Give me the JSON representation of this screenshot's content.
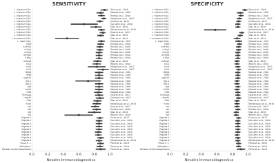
{
  "chart_data": [
    {
      "type": "forest",
      "title": "SENSITIVITY",
      "xlabel": "Novales Immunodiagnostica",
      "categories": [
        "L. infantum CSA.",
        "L. infantum CSA.",
        "L. infantum CSA.",
        "L. infantum CSA.",
        "L. infantum CSA.",
        "L. infantum CSA.",
        "L. infantum CSA.",
        "L. infantum CSA.",
        "L. infantum CSA.",
        "L. infantum CSA.",
        "L. braziliensis CSA.",
        "L. major CSA.",
        "rHSP",
        "rLiHYD1",
        "rLiHy1",
        "rLiHy3",
        "rLiHyp4",
        "rLiHys",
        "rLiHysE",
        "rLiv1",
        "rLiv4",
        "rLiv7",
        "rKQt8",
        "rGBP",
        "rpgA13",
        "rJL5.2",
        "rJL8.2",
        "rJL9",
        "rLACK",
        "rP20",
        "rEnolase",
        "rHsp83",
        "rPeb",
        "rCom",
        "rA2",
        "rA2",
        "rA2",
        "rA2",
        "Peptide 1",
        "Peptide 2",
        "Peptide 3",
        "Peptide 4",
        "Peptide 5",
        "Peptide 6",
        "Peptide 7",
        "Peptide 8",
        "Peptide 9",
        "Viscal S. L.",
        "K-Biopham.",
        "Novales Immunodiagnostics"
      ],
      "refs": [
        "Silva et al., 2019",
        "Maquei et al., 2007",
        "Portela et al., 2018",
        "Magalhaes et al., 2017",
        "Costa et al., 2017",
        "Carvalho et al., 2018",
        "Dias et al., 2018",
        "Menenesses et al., 2018",
        "Duarte et al., 2017",
        "Dias et al., 2018",
        "Dias et al., 2014",
        "Celeste et al., 2017",
        "Portela et al., 2018",
        "Portela et al., 2018",
        "Portela et al., 2018",
        "Portela et al., 2018",
        "Portela et al., 2018",
        "Portela et al., 2018",
        "Dias et al., 2018",
        "Ribeiro et al., 2018",
        "Magalhaes et al., 2017",
        "Magalhaes et al., 2017",
        "Maquei et al., 2001",
        "Maquei et al., 2001",
        "Maquei et al., 2001",
        "Maquei et al., 2001",
        "Maquei et al., 2001",
        "Maquei et al., 2001",
        "Maquei et al., 2001",
        "Maquei et al., 2001",
        "Duarte et al., 2017",
        "Celeste et al., 2017",
        "Dias et al., 2018",
        "Menenesses et al., 2018",
        "Duarte et al., 2017",
        "Portela et al., 2018",
        "Dias et al., 2018",
        "Ribeiro et al., 2018",
        "Costa et al., 2017",
        "Carvalho et al., 2018",
        "Carvalho et al., 2018",
        "Carvalho et al., 2018",
        "Carvalho et al., 2018",
        "Carvalho et al., 2018",
        "Carvalho et al., 2018",
        "Carvalho et al., 2018",
        "Menenesses et al., 2018",
        "Freire et al., 2019",
        "Freire et al., 2019",
        "Freire et al., 2019"
      ],
      "values": [
        0.93,
        0.88,
        0.89,
        0.92,
        0.87,
        0.67,
        0.82,
        0.89,
        0.91,
        0.88,
        0.45,
        0.89,
        0.88,
        0.87,
        0.87,
        0.86,
        0.86,
        0.86,
        0.84,
        0.83,
        0.83,
        0.91,
        0.86,
        0.86,
        0.86,
        0.72,
        0.86,
        0.86,
        0.86,
        0.85,
        0.86,
        0.87,
        0.84,
        0.83,
        0.81,
        0.83,
        0.8,
        0.6,
        0.87,
        0.86,
        0.86,
        0.86,
        0.86,
        0.85,
        0.85,
        0.88,
        0.86,
        0.88,
        0.87,
        0.88
      ],
      "ci_low": [
        0.88,
        0.83,
        0.85,
        0.89,
        0.83,
        0.5,
        0.75,
        0.85,
        0.87,
        0.84,
        0.3,
        0.85,
        0.84,
        0.83,
        0.83,
        0.82,
        0.82,
        0.82,
        0.79,
        0.78,
        0.72,
        0.84,
        0.81,
        0.81,
        0.81,
        0.56,
        0.81,
        0.81,
        0.81,
        0.8,
        0.81,
        0.82,
        0.79,
        0.78,
        0.76,
        0.78,
        0.72,
        0.42,
        0.83,
        0.82,
        0.82,
        0.82,
        0.82,
        0.81,
        0.81,
        0.84,
        0.82,
        0.84,
        0.83,
        0.82
      ],
      "ci_high": [
        0.97,
        0.92,
        0.93,
        0.95,
        0.91,
        0.84,
        0.89,
        0.93,
        0.94,
        0.92,
        0.6,
        0.93,
        0.92,
        0.91,
        0.91,
        0.9,
        0.9,
        0.9,
        0.89,
        0.88,
        0.94,
        0.98,
        0.91,
        0.91,
        0.91,
        0.88,
        0.91,
        0.91,
        0.91,
        0.9,
        0.91,
        0.92,
        0.89,
        0.88,
        0.86,
        0.88,
        0.88,
        0.78,
        0.91,
        0.9,
        0.9,
        0.9,
        0.9,
        0.89,
        0.89,
        0.92,
        0.9,
        0.92,
        0.91,
        0.94
      ],
      "color": "#444444",
      "xlim": [
        0,
        1
      ],
      "xticks": [
        {
          "value": 0,
          "label": "0.0"
        },
        0.2,
        0.4,
        0.6,
        0.8,
        {
          "value": 1,
          "label": "1.0"
        }
      ],
      "grid": false
    },
    {
      "type": "forest",
      "title": "SPECIFICITY",
      "xlabel": "Novales Immunodiagnostica",
      "categories": [
        "L. infantum CSA.",
        "L. infantum CSA.",
        "L. infantum CSA.",
        "L. infantum CSA.",
        "L. infantum CSA.",
        "L. infantum CSA.",
        "L. infantum CSA.",
        "L. infantum CSA.",
        "L. infantum CSA.",
        "L. infantum CSA.",
        "L. braziliensis CSA.",
        "L. major CSA.",
        "rHSP",
        "rLiHYD1",
        "rLiHy1",
        "rLiHy3",
        "rLiHyp4",
        "rLiHys",
        "rLiHysE",
        "rLiv1",
        "rLiv4",
        "rLiv7",
        "rKQt8",
        "rGBP",
        "rpgA13",
        "rJL5.2",
        "rJL8.2",
        "rJL9",
        "rLACK",
        "rP20",
        "rEnolase",
        "rHsp83",
        "rPeb",
        "rCom",
        "rA2",
        "rA2",
        "rA2",
        "rA2",
        "Peptide 1",
        "Peptide 2",
        "Peptide 3",
        "Peptide 4",
        "Peptide 5",
        "Peptide 6",
        "Peptide 7",
        "Peptide 8",
        "Peptide 9",
        "Viscal S. L.",
        "K-Biopham.",
        "Novales Immunodiagnostics"
      ],
      "refs": [
        "Silva et al., 2019",
        "Maquei et al., 2007",
        "Portela et al., 2018",
        "Magalhaes et al., 2017",
        "Costa et al., 2017",
        "Carvalho et al., 2018",
        "Dias et al., 2018",
        "Menenesses et al., 2018",
        "Duarte et al., 2017",
        "Dias et al., 2018",
        "Dias et al., 2014",
        "Celeste et al., 2017",
        "Portela et al., 2018",
        "Portela et al., 2018",
        "Portela et al., 2018",
        "Portela et al., 2018",
        "Portela et al., 2018",
        "Portela et al., 2018",
        "Dias et al., 2018",
        "Ribeiro et al., 2018",
        "Magalhaes et al., 2017",
        "Magalhaes et al., 2017",
        "Maquei et al., 2001",
        "Maquei et al., 2001",
        "Maquei et al., 2001",
        "Maquei et al., 2001",
        "Maquei et al., 2001",
        "Maquei et al., 2001",
        "Maquei et al., 2001",
        "Maquei et al., 2001",
        "Duarte et al., 2017",
        "Celeste et al., 2017",
        "Dias et al., 2018",
        "Menenesses et al., 2018",
        "Duarte et al., 2017",
        "Portela et al., 2018",
        "Dias et al., 2018",
        "Ribeiro et al., 2018",
        "Costa et al., 2017",
        "Carvalho et al., 2018",
        "Carvalho et al., 2018",
        "Carvalho et al., 2018",
        "Carvalho et al., 2018",
        "Carvalho et al., 2018",
        "Carvalho et al., 2018",
        "Carvalho et al., 2018",
        "Menenesses et al., 2018",
        "Freire et al., 2019",
        "Freire et al., 2019",
        "Freire et al., 2019"
      ],
      "values": [
        0.96,
        0.9,
        0.91,
        0.89,
        0.88,
        0.87,
        0.87,
        0.58,
        0.92,
        0.9,
        0.86,
        0.88,
        0.89,
        0.88,
        0.88,
        0.87,
        0.87,
        0.87,
        0.86,
        0.86,
        0.87,
        0.88,
        0.87,
        0.87,
        0.87,
        0.86,
        0.86,
        0.87,
        0.86,
        0.87,
        0.87,
        0.88,
        0.86,
        0.86,
        0.86,
        0.87,
        0.85,
        0.85,
        0.88,
        0.87,
        0.87,
        0.87,
        0.87,
        0.87,
        0.86,
        0.87,
        0.87,
        0.88,
        0.88,
        0.91
      ],
      "ci_low": [
        0.93,
        0.86,
        0.88,
        0.86,
        0.85,
        0.84,
        0.84,
        0.44,
        0.89,
        0.87,
        0.82,
        0.84,
        0.86,
        0.85,
        0.85,
        0.84,
        0.84,
        0.84,
        0.83,
        0.83,
        0.84,
        0.85,
        0.84,
        0.84,
        0.84,
        0.83,
        0.83,
        0.84,
        0.83,
        0.84,
        0.84,
        0.85,
        0.83,
        0.83,
        0.83,
        0.84,
        0.82,
        0.82,
        0.85,
        0.84,
        0.84,
        0.84,
        0.84,
        0.84,
        0.83,
        0.84,
        0.84,
        0.85,
        0.85,
        0.86
      ],
      "ci_high": [
        0.99,
        0.94,
        0.94,
        0.92,
        0.91,
        0.9,
        0.9,
        0.72,
        0.95,
        0.93,
        0.9,
        0.92,
        0.92,
        0.91,
        0.91,
        0.9,
        0.9,
        0.9,
        0.89,
        0.89,
        0.9,
        0.91,
        0.9,
        0.9,
        0.9,
        0.89,
        0.89,
        0.9,
        0.89,
        0.9,
        0.9,
        0.91,
        0.89,
        0.89,
        0.89,
        0.9,
        0.88,
        0.88,
        0.91,
        0.9,
        0.9,
        0.9,
        0.9,
        0.9,
        0.89,
        0.9,
        0.9,
        0.91,
        0.91,
        0.96
      ],
      "color": "#444444",
      "xlim": [
        0,
        1
      ],
      "xticks": [
        {
          "value": 0,
          "label": "0.0"
        },
        0.2,
        0.4,
        0.6,
        0.8,
        {
          "value": 1,
          "label": "1.0"
        }
      ],
      "grid": false
    }
  ]
}
